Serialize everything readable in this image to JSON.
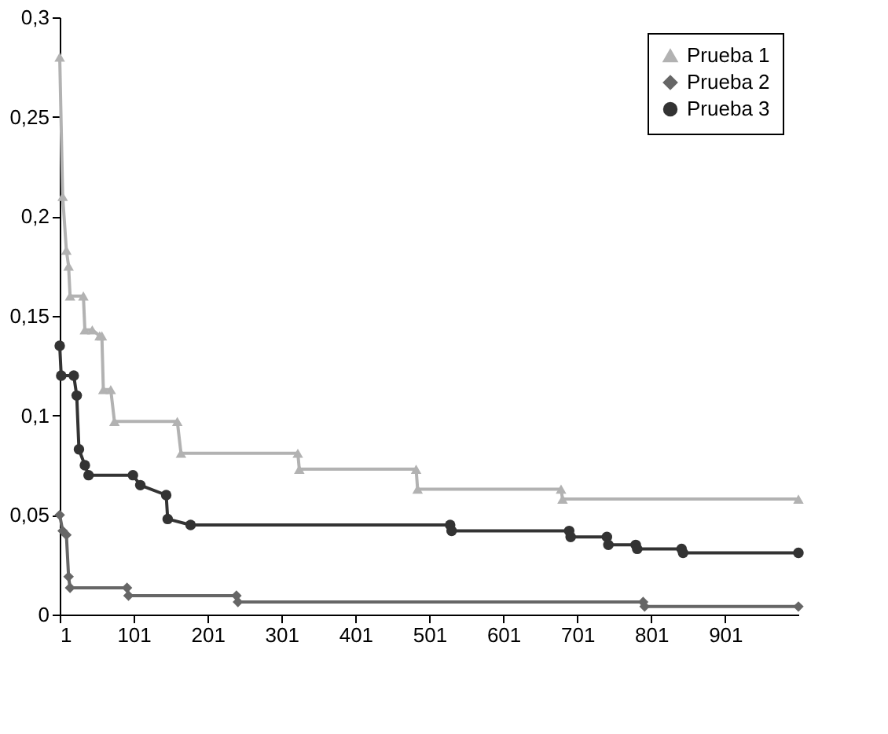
{
  "chart_data": {
    "type": "line",
    "xlim": [
      1,
      1000
    ],
    "xticks": [
      1,
      101,
      201,
      301,
      401,
      501,
      601,
      701,
      801,
      901
    ],
    "ylim": [
      0,
      0.3
    ],
    "yticks": [
      0,
      {
        "value": 0.05,
        "label": "0,05"
      },
      {
        "value": 0.1,
        "label": "0,1"
      },
      {
        "value": 0.15,
        "label": "0,15"
      },
      {
        "value": 0.2,
        "label": "0,2"
      },
      {
        "value": 0.25,
        "label": "0,25"
      },
      {
        "value": 0.3,
        "label": "0,3"
      }
    ],
    "grid": false,
    "legend": "top right",
    "series": [
      {
        "name": "Prueba 1",
        "color": "#b2b2b2",
        "marker": "triangle",
        "x": [
          1,
          5,
          10,
          13,
          15,
          33,
          35,
          45,
          55,
          58,
          60,
          70,
          75,
          160,
          165,
          323,
          325,
          483,
          485,
          679,
          681,
          1000
        ],
        "values": [
          0.28,
          0.21,
          0.183,
          0.175,
          0.16,
          0.16,
          0.143,
          0.143,
          0.14,
          0.14,
          0.113,
          0.113,
          0.097,
          0.097,
          0.081,
          0.081,
          0.073,
          0.073,
          0.063,
          0.063,
          0.058,
          0.058
        ]
      },
      {
        "name": "Prueba 2",
        "color": "#666666",
        "marker": "diamond",
        "x": [
          1,
          5,
          10,
          13,
          15,
          92,
          94,
          240,
          242,
          790,
          792,
          1000
        ],
        "values": [
          0.05,
          0.042,
          0.04,
          0.019,
          0.0134,
          0.0134,
          0.0095,
          0.0095,
          0.0063,
          0.0063,
          0.004,
          0.004
        ]
      },
      {
        "name": "Prueba 3",
        "color": "#333333",
        "marker": "circle",
        "x": [
          1,
          3,
          20,
          24,
          27,
          35,
          40,
          100,
          110,
          145,
          147,
          178,
          529,
          531,
          690,
          692,
          741,
          743,
          780,
          782,
          842,
          844,
          1000
        ],
        "values": [
          0.135,
          0.12,
          0.12,
          0.11,
          0.083,
          0.075,
          0.07,
          0.07,
          0.065,
          0.06,
          0.048,
          0.045,
          0.045,
          0.042,
          0.042,
          0.039,
          0.039,
          0.035,
          0.035,
          0.033,
          0.033,
          0.031,
          0.031
        ]
      }
    ]
  }
}
